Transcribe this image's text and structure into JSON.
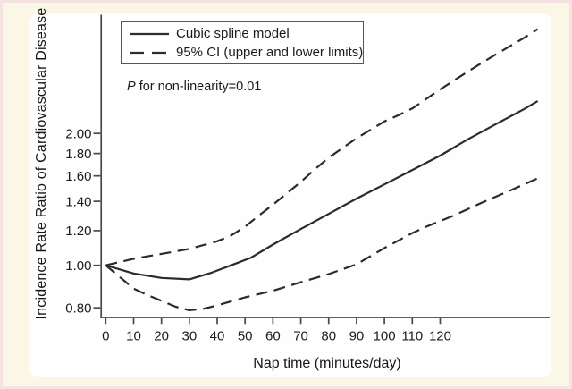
{
  "chart_data": {
    "type": "line",
    "title": "",
    "xlabel": "Nap time (minutes/day)",
    "ylabel": "Incidence Rate Ratio of Cardiovascular Disease",
    "y_scale": "log",
    "xlim": [
      0,
      159
    ],
    "ylim": [
      0.76,
      3.7
    ],
    "grid": false,
    "legend_position": "top-left-inside",
    "x_ticks": [
      0,
      10,
      20,
      30,
      40,
      50,
      60,
      70,
      80,
      90,
      100,
      110,
      120
    ],
    "y_ticks": [
      "2.00",
      "1.80",
      "1.60",
      "1.40",
      "1.20",
      "1.00",
      "0.80"
    ],
    "annotation": {
      "italic": "P",
      "text": " for non-linearity=0.01"
    },
    "legend": [
      {
        "label": "Cubic spline model",
        "style": "solid"
      },
      {
        "label": "95% CI (upper and lower limits)",
        "style": "dashed"
      }
    ],
    "series": [
      {
        "id": "cubic-spline-curve",
        "name": "Cubic spline model",
        "style": "solid",
        "points": [
          [
            0,
            1.0
          ],
          [
            10,
            0.958
          ],
          [
            20,
            0.936
          ],
          [
            30,
            0.929
          ],
          [
            38,
            0.962
          ],
          [
            45,
            1.0
          ],
          [
            52,
            1.04
          ],
          [
            60,
            1.115
          ],
          [
            70,
            1.21
          ],
          [
            80,
            1.31
          ],
          [
            90,
            1.42
          ],
          [
            100,
            1.53
          ],
          [
            110,
            1.65
          ],
          [
            120,
            1.78
          ],
          [
            130,
            1.94
          ],
          [
            140,
            2.1
          ],
          [
            150,
            2.27
          ],
          [
            155,
            2.37
          ]
        ]
      },
      {
        "id": "ci-upper-curve",
        "name": "95% CI upper limit",
        "style": "dashed",
        "points": [
          [
            0,
            1.0
          ],
          [
            10,
            1.035
          ],
          [
            20,
            1.062
          ],
          [
            30,
            1.09
          ],
          [
            40,
            1.135
          ],
          [
            45,
            1.17
          ],
          [
            50,
            1.225
          ],
          [
            55,
            1.3
          ],
          [
            60,
            1.375
          ],
          [
            70,
            1.55
          ],
          [
            75,
            1.655
          ],
          [
            80,
            1.76
          ],
          [
            90,
            1.95
          ],
          [
            100,
            2.13
          ],
          [
            105,
            2.2
          ],
          [
            110,
            2.28
          ],
          [
            120,
            2.52
          ],
          [
            130,
            2.77
          ],
          [
            140,
            3.03
          ],
          [
            150,
            3.3
          ],
          [
            155,
            3.46
          ]
        ]
      },
      {
        "id": "ci-lower-curve",
        "name": "95% CI lower limit",
        "style": "dashed",
        "points": [
          [
            0,
            1.0
          ],
          [
            10,
            0.885
          ],
          [
            15,
            0.855
          ],
          [
            20,
            0.83
          ],
          [
            25,
            0.805
          ],
          [
            30,
            0.79
          ],
          [
            35,
            0.796
          ],
          [
            40,
            0.81
          ],
          [
            50,
            0.845
          ],
          [
            60,
            0.875
          ],
          [
            70,
            0.915
          ],
          [
            80,
            0.955
          ],
          [
            90,
            1.005
          ],
          [
            100,
            1.095
          ],
          [
            110,
            1.185
          ],
          [
            115,
            1.225
          ],
          [
            125,
            1.3
          ],
          [
            135,
            1.39
          ],
          [
            145,
            1.48
          ],
          [
            155,
            1.58
          ]
        ]
      }
    ],
    "colors": {
      "line": "#2b2b2b",
      "axis": "#4a4a4a",
      "plot_background": "#fefefe",
      "figure_background": "#fbf7e6",
      "figure_border": "#f6e2e0"
    }
  }
}
